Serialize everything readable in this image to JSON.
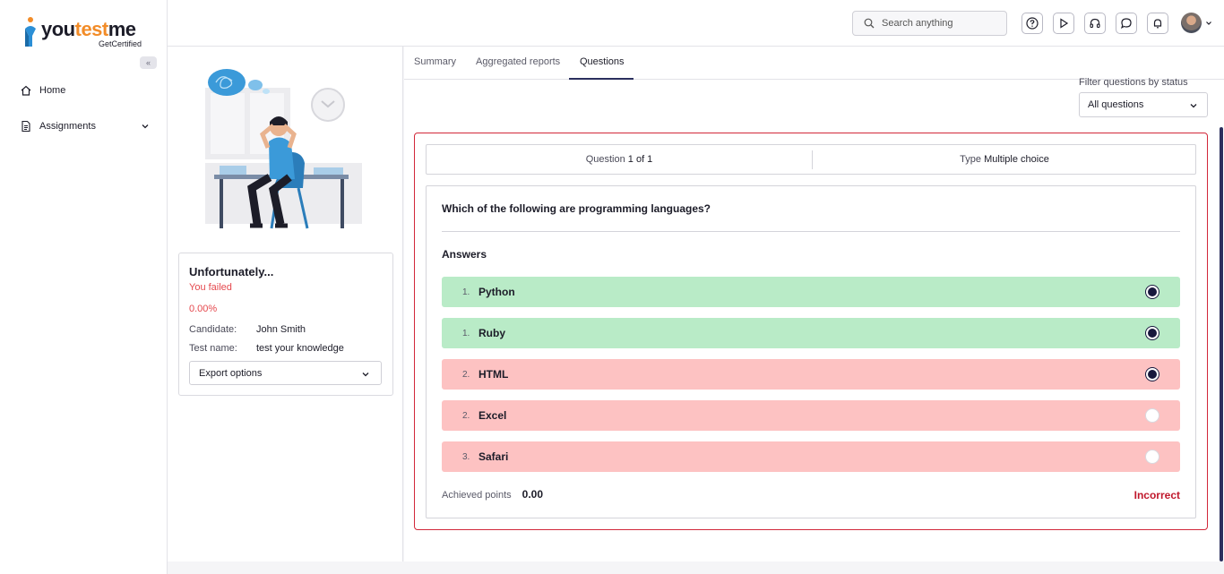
{
  "brand": {
    "name_prefix": "you",
    "name_accent": "test",
    "name_suffix": "me",
    "tagline": "GetCertified"
  },
  "sidebar": {
    "collapse_label": "«",
    "items": [
      {
        "label": "Home",
        "icon": "home-icon"
      },
      {
        "label": "Assignments",
        "icon": "document-icon"
      }
    ]
  },
  "topbar": {
    "search_placeholder": "Search anything",
    "icons": [
      "help-icon",
      "play-icon",
      "headset-icon",
      "chat-icon",
      "bell-icon"
    ]
  },
  "result": {
    "title": "Unfortunately...",
    "status": "You failed",
    "score": "0.00%",
    "candidate_label": "Candidate:",
    "candidate_value": "John Smith",
    "test_label": "Test name:",
    "test_value": "test your knowledge",
    "export_label": "Export options"
  },
  "tabs": [
    {
      "label": "Summary",
      "active": false
    },
    {
      "label": "Aggregated reports",
      "active": false
    },
    {
      "label": "Questions",
      "active": true
    }
  ],
  "filter": {
    "label": "Filter questions by status",
    "value": "All questions"
  },
  "question": {
    "counter_prefix": "Question",
    "counter_value": "1 of 1",
    "type_prefix": "Type",
    "type_value": "Multiple choice",
    "text": "Which of the following are programming languages?",
    "answers_label": "Answers",
    "answers": [
      {
        "num": "1.",
        "label": "Python",
        "state": "correct",
        "selected": true
      },
      {
        "num": "1.",
        "label": "Ruby",
        "state": "correct",
        "selected": true
      },
      {
        "num": "2.",
        "label": "HTML",
        "state": "wrong",
        "selected": true
      },
      {
        "num": "2.",
        "label": "Excel",
        "state": "wrong",
        "selected": false
      },
      {
        "num": "3.",
        "label": "Safari",
        "state": "wrong",
        "selected": false
      }
    ],
    "achieved_label": "Achieved points",
    "achieved_value": "0.00",
    "result_label": "Incorrect"
  },
  "colors": {
    "accent": "#f28c28",
    "correct_bg": "#b9ebc7",
    "wrong_bg": "#fdc2c2",
    "error": "#c0182c",
    "navy": "#17183d"
  }
}
